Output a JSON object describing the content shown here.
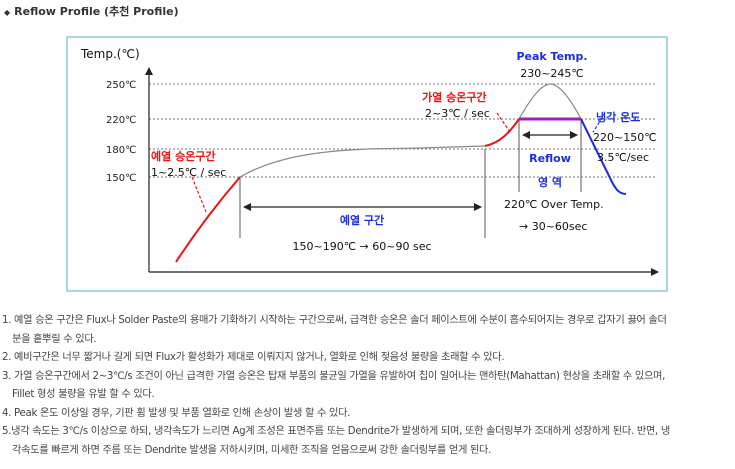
{
  "heading": "Reflow Profile (추천 Profile)",
  "bullet": "◆",
  "diagram": {
    "axis_label": "Temp.(℃)",
    "ticks": [
      "250℃",
      "220℃",
      "180℃",
      "150℃"
    ],
    "peak_title": "Peak Temp.",
    "peak_range": "230~245℃",
    "preheat_rise_title": "예열 승온구간",
    "preheat_rise_rate": "1~2.5℃ / sec",
    "heat_rise_title": "가열 승온구간",
    "heat_rise_rate": "2~3℃ / sec",
    "cooling_title": "냉각 온도",
    "cooling_range": "220~150℃",
    "cooling_rate": "3.5℃/sec",
    "reflow_line1": "Reflow",
    "reflow_line2": "영 역",
    "over_temp": "220℃ Over Temp.",
    "over_time": "→ 30~60sec",
    "preheat_title": "예열 구간",
    "preheat_desc": "150~190℃ → 60~90 sec",
    "colors": {
      "red": "#ee1111",
      "blue": "#1a2ee0",
      "purple": "#a020b8",
      "gray": "#888888",
      "frame": "#a9d8de"
    }
  },
  "notes": [
    {
      "line1": "1. 예열 승온 구간은 Flux나 Solder Paste의 용매가 기화하기 시작하는 구간으로써, 급격한 승온은 솔더 페이스트에 수분이 흡수되어지는 경우로 갑자기 끓어 솔더",
      "line2": "분을 흩뿌릴 수 있다."
    },
    {
      "line1": "2. 예비구간은 너무 짧거나 길게 되면 Flux가 활성화가 제대로 이뤄지지 않거나, 열화로 인해 젖음성 불량을 초래할 수 있다.",
      "line2": ""
    },
    {
      "line1": "3. 가열 승온구간에서 2~3℃/s 조건이 아닌 급격한 가열 승온은 탑재 부품의 불균일 가열을 유발하여 칩이 일어나는 맨하탄(Mahattan) 현상을 초래할 수 있으며,",
      "line2": "Fillet 형성 불량을 유발 할 수 있다."
    },
    {
      "line1": "4. Peak 온도 이상일 경우, 기판 휨 발생 및 부품 열화로 인해 손상이 발생 할 수 있다.",
      "line2": ""
    },
    {
      "line1": "5.냉각 속도는 3℃/s 이상으로 하되, 냉각속도가 느리면 Ag계 조성은 표면주름 또는 Dendrite가  발생하게 되며, 또한 솔더링부가 조대하게 성장하게 된다. 반면, 냉",
      "line2": "각속도를 빠르게 하면 주름 또는 Dendrite 발생을 저하시키며, 미세한 조직을 얻음으로써 강한 솔더링부를 얻게 된다."
    }
  ]
}
